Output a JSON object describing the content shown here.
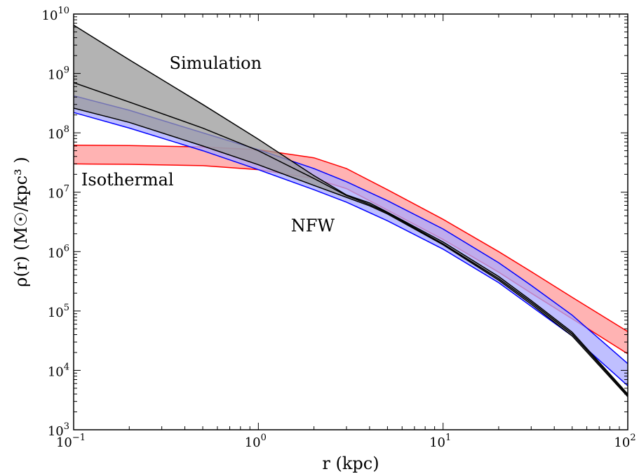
{
  "chart_data": {
    "type": "area",
    "xscale": "log",
    "yscale": "log",
    "xlim": [
      0.1,
      100
    ],
    "ylim": [
      1000,
      10000000000
    ],
    "x_ticks": [
      {
        "base": "10",
        "exp": "−1",
        "value": 0.1
      },
      {
        "base": "10",
        "exp": "0",
        "value": 1
      },
      {
        "base": "10",
        "exp": "1",
        "value": 10
      },
      {
        "base": "10",
        "exp": "2",
        "value": 100
      }
    ],
    "y_ticks": [
      {
        "base": "10",
        "exp": "3",
        "value": 1000
      },
      {
        "base": "10",
        "exp": "4",
        "value": 10000
      },
      {
        "base": "10",
        "exp": "5",
        "value": 100000
      },
      {
        "base": "10",
        "exp": "6",
        "value": 1000000
      },
      {
        "base": "10",
        "exp": "7",
        "value": 10000000
      },
      {
        "base": "10",
        "exp": "8",
        "value": 100000000
      },
      {
        "base": "10",
        "exp": "9",
        "value": 1000000000
      },
      {
        "base": "10",
        "exp": "10",
        "value": 10000000000
      }
    ],
    "xlabel": "r (kpc)",
    "ylabel": "ρ(r) (M☉/kpc³ )",
    "annotations": [
      {
        "text": "Simulation",
        "x": 0.33,
        "y": 1200000000
      },
      {
        "text": "Isothermal",
        "x": 0.11,
        "y": 13000000
      },
      {
        "text": "NFW",
        "x": 1.5,
        "y": 2200000
      }
    ],
    "grid": false,
    "bands": [
      {
        "label": "Isothermal",
        "color": "#ff0000",
        "fill": "#ff9999",
        "x": [
          0.1,
          0.2,
          0.5,
          1,
          2,
          3,
          5,
          10,
          20,
          30,
          50,
          100
        ],
        "upper": [
          62000000,
          61000000,
          58000000,
          52000000,
          38000000,
          25000000,
          11000000,
          3500000,
          1000000,
          460000,
          170000,
          45000
        ],
        "lower": [
          30000000,
          29500000,
          28000000,
          24000000,
          17000000,
          11500000,
          5000000,
          1600000,
          450000,
          200000,
          74000,
          19000
        ]
      },
      {
        "label": "NFW",
        "color": "#0000ff",
        "fill": "#aaaaff",
        "x": [
          0.1,
          0.2,
          0.5,
          1,
          2,
          3,
          5,
          10,
          20,
          30,
          50,
          100
        ],
        "upper": [
          420000000,
          240000000,
          100000000,
          52000000,
          25000000,
          15000000,
          7200000,
          2400000,
          650000,
          270000,
          85000,
          13000
        ],
        "lower": [
          220000000,
          120000000,
          50000000,
          24000000,
          11000000,
          6800000,
          3300000,
          1100000,
          300000,
          120000,
          38000,
          5500
        ]
      },
      {
        "label": "Simulation",
        "color": "#000000",
        "fill": "#999999",
        "x": [
          0.1,
          0.2,
          0.5,
          1,
          2,
          3,
          4,
          5,
          10,
          20,
          30,
          50,
          100
        ],
        "upper": [
          6500000000,
          1700000000,
          300000000,
          78000000,
          19000000,
          9000000,
          6600000,
          4600000,
          1450000,
          380000,
          150000,
          44000,
          4000
        ],
        "lower": [
          260000000,
          150000000,
          60000000,
          29000000,
          13000000,
          8200000,
          5900000,
          4300000,
          1300000,
          330000,
          130000,
          38000,
          3600
        ],
        "mid": [
          700000000,
          330000000,
          120000000,
          50000000,
          17000000,
          8800000,
          6200000,
          4500000,
          1350000,
          350000,
          140000,
          41000,
          3800
        ]
      }
    ]
  }
}
